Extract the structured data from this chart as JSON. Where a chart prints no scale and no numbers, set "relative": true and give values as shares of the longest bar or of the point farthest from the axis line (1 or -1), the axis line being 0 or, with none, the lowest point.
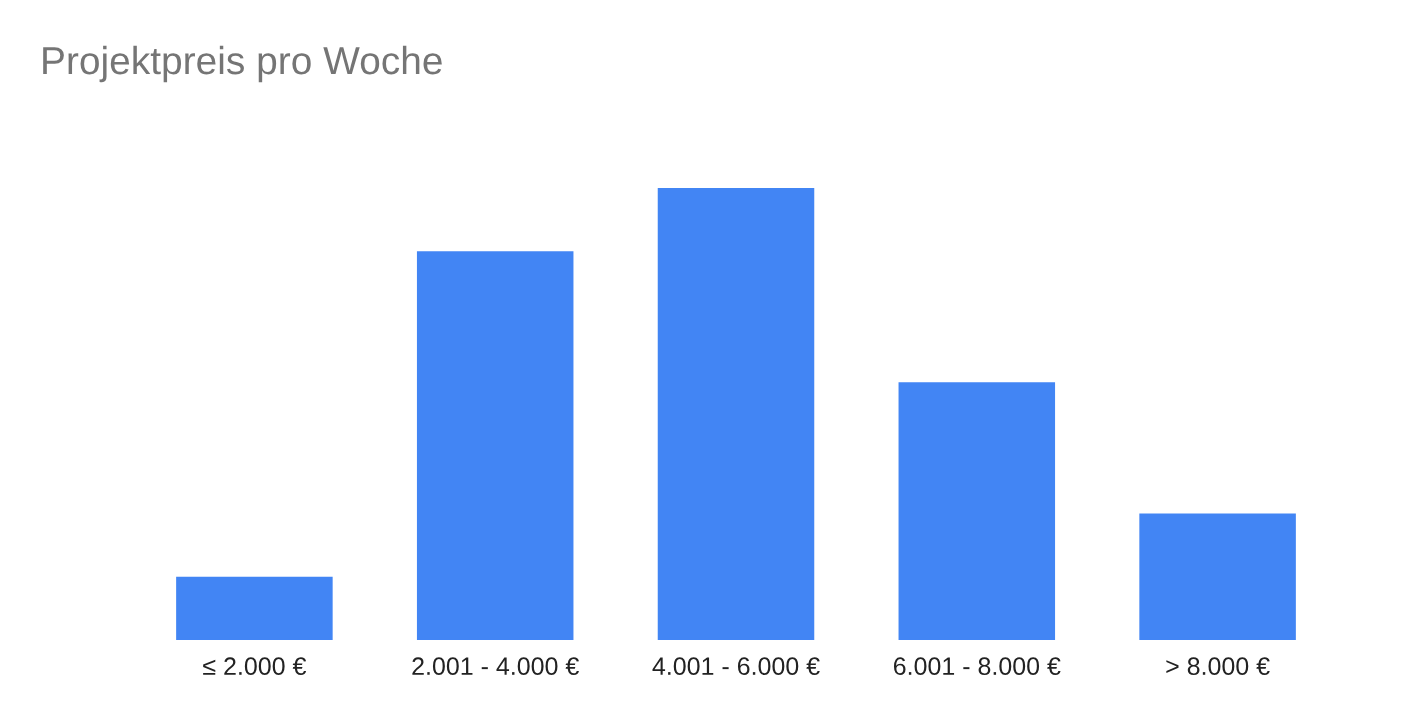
{
  "chart_data": {
    "type": "bar",
    "title": "Projektpreis pro Woche",
    "relative": true,
    "categories": [
      "≤ 2.000 €",
      "2.001 - 4.000 €",
      "4.001 - 6.000 €",
      "6.001 - 8.000 €",
      "> 8.000 €"
    ],
    "values": [
      0.14,
      0.86,
      1,
      0.57,
      0.28
    ],
    "color": "#4285f4",
    "grid": false,
    "legend": false
  }
}
